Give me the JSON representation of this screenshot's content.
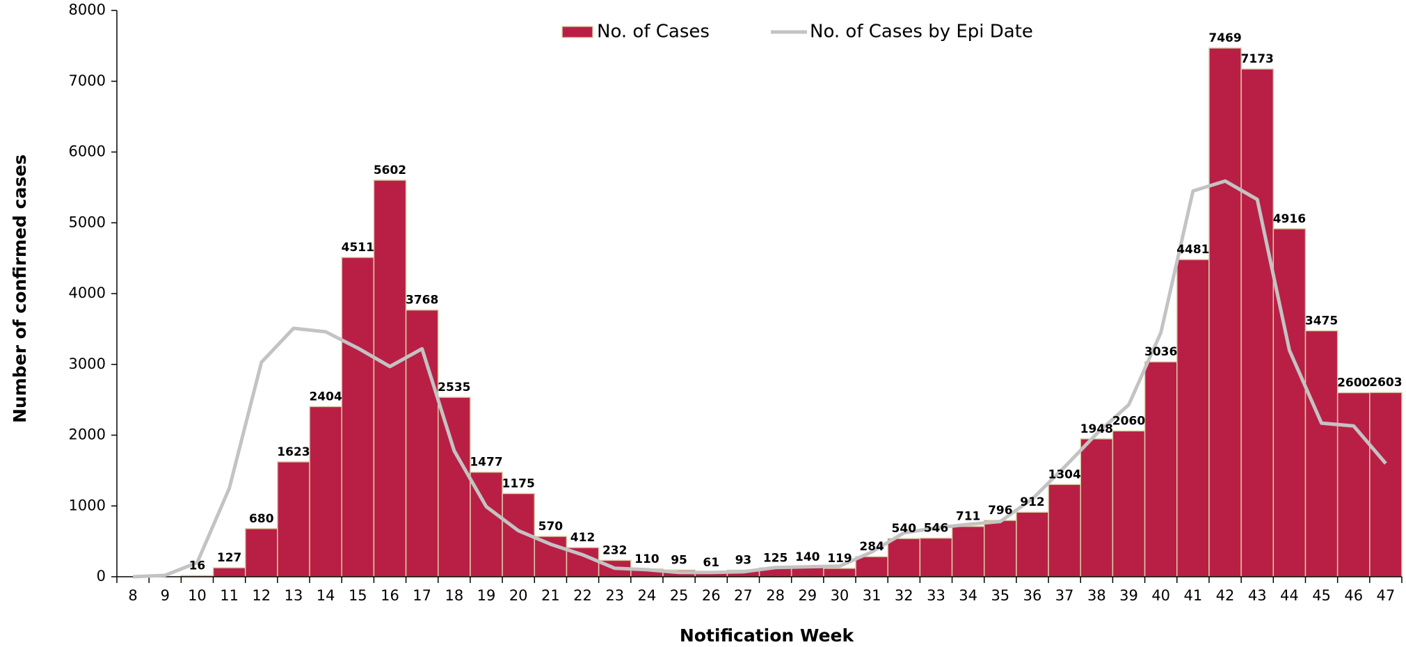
{
  "chart_data": {
    "type": "bar",
    "x_label": "Notification Week",
    "y_label": "Number of confirmed cases",
    "categories": [
      "8",
      "9",
      "10",
      "11",
      "12",
      "13",
      "14",
      "15",
      "16",
      "17",
      "18",
      "19",
      "20",
      "21",
      "22",
      "23",
      "24",
      "25",
      "26",
      "27",
      "28",
      "29",
      "30",
      "31",
      "32",
      "33",
      "34",
      "35",
      "36",
      "37",
      "38",
      "39",
      "40",
      "41",
      "42",
      "43",
      "44",
      "45",
      "46",
      "47"
    ],
    "series": [
      {
        "name": "No. of Cases",
        "type": "bar",
        "color": "#b91f45",
        "border": "#d9cfa6",
        "values": [
          null,
          null,
          16,
          127,
          680,
          1623,
          2404,
          4511,
          5602,
          3768,
          2535,
          1477,
          1175,
          570,
          412,
          232,
          110,
          95,
          61,
          93,
          125,
          140,
          119,
          284,
          540,
          546,
          711,
          796,
          912,
          1304,
          1948,
          2060,
          3036,
          4481,
          7469,
          7173,
          4916,
          3475,
          2600,
          2603
        ]
      },
      {
        "name": "No. of Cases by Epi Date",
        "type": "line",
        "color": "#c3c3c3",
        "values": [
          0,
          20,
          200,
          1250,
          3030,
          3510,
          3460,
          3230,
          2970,
          3220,
          1780,
          990,
          650,
          460,
          310,
          120,
          100,
          60,
          60,
          70,
          130,
          140,
          150,
          350,
          620,
          690,
          740,
          780,
          1100,
          1550,
          2020,
          2430,
          3450,
          5450,
          5590,
          5330,
          3200,
          2170,
          2130,
          1600
        ]
      }
    ],
    "ylim": [
      0,
      8000
    ],
    "yticks": [
      0,
      1000,
      2000,
      3000,
      4000,
      5000,
      6000,
      7000,
      8000
    ],
    "legend": "top"
  }
}
